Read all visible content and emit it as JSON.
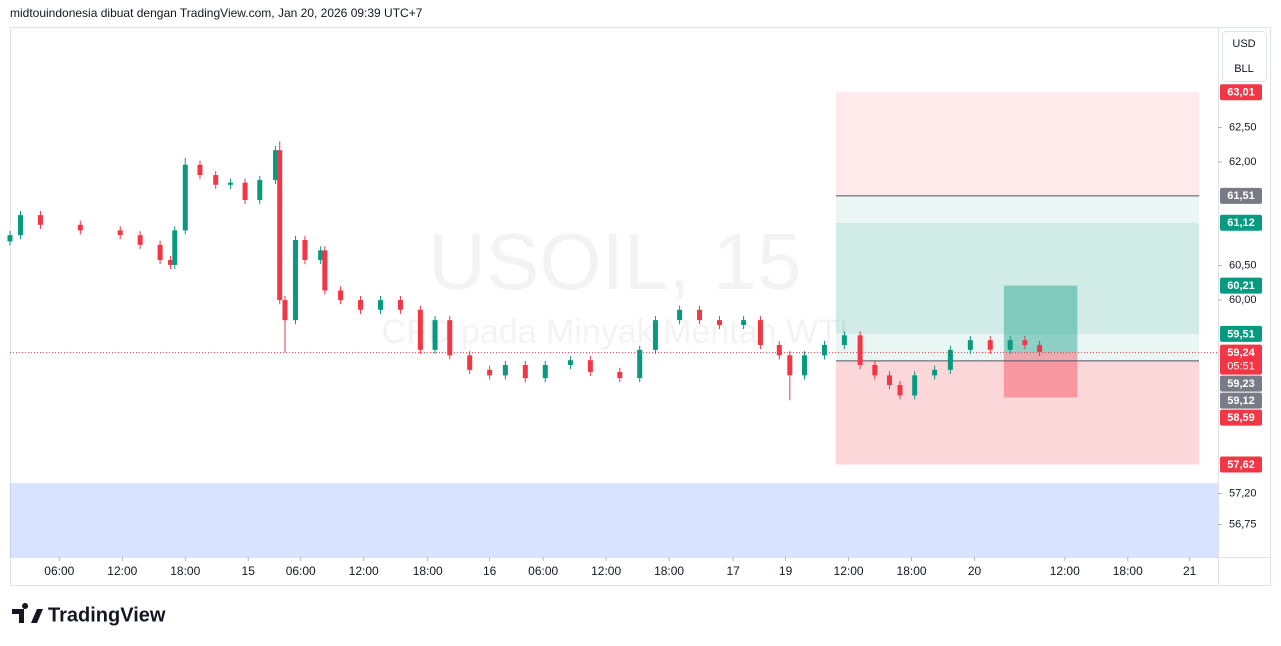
{
  "header": "midtouindonesia dibuat dengan TradingView.com, Jan 20, 2026 09:39 UTC+7",
  "brand": "TradingView",
  "currency": "USD",
  "unit": "BLL",
  "chart_data": {
    "type": "candlestick",
    "title": "USOIL, 15",
    "subtitle": "CFD pada Minyak Mentah WTI",
    "up_color": "#089981",
    "down_color": "#f23645",
    "xlim": [
      1.3,
      116.4
    ],
    "ylim": [
      56.28,
      63.94
    ],
    "xticks": [
      {
        "value": 6,
        "label": "06:00"
      },
      {
        "value": 12,
        "label": "12:00"
      },
      {
        "value": 18,
        "label": "18:00"
      },
      {
        "value": 24,
        "label": "15"
      },
      {
        "value": 29,
        "label": "06:00"
      },
      {
        "value": 35,
        "label": "12:00"
      },
      {
        "value": 41.1,
        "label": "18:00"
      },
      {
        "value": 47,
        "label": "16"
      },
      {
        "value": 52.1,
        "label": "06:00"
      },
      {
        "value": 58.1,
        "label": "12:00"
      },
      {
        "value": 64.1,
        "label": "18:00"
      },
      {
        "value": 70.2,
        "label": "17"
      },
      {
        "value": 75.2,
        "label": "19"
      },
      {
        "value": 81.2,
        "label": "12:00"
      },
      {
        "value": 87.2,
        "label": "18:00"
      },
      {
        "value": 93.2,
        "label": "20"
      },
      {
        "value": 101.8,
        "label": "12:00"
      },
      {
        "value": 107.8,
        "label": "18:00"
      },
      {
        "value": 113.7,
        "label": "21"
      }
    ],
    "yticks": [
      {
        "value": 62.5,
        "label": "62,50"
      },
      {
        "value": 62,
        "label": "62,00"
      },
      {
        "value": 60.5,
        "label": "60,50"
      },
      {
        "value": 60,
        "label": "60,00"
      },
      {
        "value": 57.2,
        "label": "57,20"
      },
      {
        "value": 56.75,
        "label": "56,75"
      }
    ],
    "x": [
      1.3,
      2.3,
      4.2,
      8.0,
      11.8,
      13.7,
      15.6,
      16.6,
      17.0,
      18.0,
      19.4,
      20.9,
      22.3,
      23.7,
      25.1,
      26.6,
      27.0,
      27.5,
      28.5,
      29.4,
      30.9,
      31.3,
      32.8,
      34.7,
      36.6,
      38.5,
      40.4,
      41.8,
      43.2,
      45.1,
      47.0,
      48.5,
      50.4,
      52.3,
      54.7,
      56.6,
      59.4,
      61.3,
      62.8,
      65.1,
      67.0,
      68.9,
      71.2,
      72.8,
      74.6,
      75.6,
      77.0,
      78.9,
      80.8,
      82.3,
      83.7,
      85.1,
      86.1,
      87.5,
      89.4,
      90.9,
      92.8,
      94.7,
      96.6,
      98.0,
      99.4
    ],
    "open": [
      60.85,
      60.94,
      61.23,
      61.09,
      61.01,
      60.94,
      60.8,
      60.58,
      60.51,
      61.01,
      61.96,
      61.81,
      61.67,
      61.7,
      61.45,
      61.74,
      62.17,
      60.0,
      59.71,
      60.87,
      60.58,
      60.72,
      60.14,
      60.0,
      59.86,
      60.0,
      59.86,
      59.28,
      59.71,
      59.2,
      58.99,
      58.91,
      59.06,
      58.87,
      59.06,
      59.13,
      58.96,
      58.87,
      59.28,
      59.71,
      59.86,
      59.71,
      59.64,
      59.71,
      59.35,
      59.2,
      58.91,
      59.2,
      59.35,
      59.49,
      59.06,
      58.91,
      58.77,
      58.62,
      58.91,
      58.99,
      59.28,
      59.42,
      59.28,
      59.42,
      59.35
    ],
    "high": [
      61.0,
      61.29,
      61.29,
      61.15,
      61.07,
      61.0,
      60.86,
      60.64,
      61.07,
      62.06,
      62.02,
      61.87,
      61.76,
      61.76,
      61.8,
      62.23,
      62.3,
      60.06,
      60.93,
      60.93,
      60.78,
      60.78,
      60.2,
      60.06,
      60.06,
      60.06,
      59.92,
      59.77,
      59.77,
      59.26,
      59.05,
      59.12,
      59.12,
      59.12,
      59.19,
      59.19,
      59.02,
      59.34,
      59.77,
      59.92,
      59.92,
      59.77,
      59.77,
      59.77,
      59.41,
      59.26,
      59.26,
      59.41,
      59.55,
      59.55,
      59.12,
      58.97,
      58.83,
      58.97,
      59.05,
      59.34,
      59.48,
      59.48,
      59.48,
      59.48,
      59.41
    ],
    "low": [
      60.79,
      60.88,
      61.03,
      60.95,
      60.88,
      60.74,
      60.52,
      60.45,
      60.45,
      60.95,
      61.75,
      61.61,
      61.61,
      61.39,
      61.39,
      61.68,
      59.94,
      59.24,
      59.65,
      60.52,
      60.52,
      60.08,
      59.94,
      59.8,
      59.8,
      59.8,
      59.22,
      59.22,
      59.14,
      58.93,
      58.85,
      58.85,
      58.81,
      58.81,
      59.0,
      58.9,
      58.81,
      58.81,
      59.22,
      59.65,
      59.65,
      59.58,
      59.58,
      59.29,
      59.14,
      58.55,
      58.85,
      59.14,
      59.29,
      59.0,
      58.85,
      58.71,
      58.56,
      58.56,
      58.85,
      58.93,
      59.22,
      59.22,
      59.22,
      59.29,
      59.19
    ],
    "close": [
      60.94,
      61.23,
      61.09,
      61.01,
      60.94,
      60.8,
      60.58,
      60.51,
      61.01,
      61.96,
      61.81,
      61.67,
      61.7,
      61.45,
      61.74,
      62.17,
      60.0,
      59.71,
      60.87,
      60.58,
      60.72,
      60.14,
      60.0,
      59.86,
      60.0,
      59.86,
      59.28,
      59.71,
      59.2,
      58.99,
      58.91,
      59.06,
      58.87,
      59.06,
      59.13,
      58.96,
      58.87,
      59.28,
      59.71,
      59.86,
      59.71,
      59.64,
      59.71,
      59.35,
      59.2,
      58.91,
      59.2,
      59.35,
      59.49,
      59.06,
      58.91,
      58.77,
      58.62,
      58.91,
      58.99,
      59.28,
      59.42,
      59.28,
      59.42,
      59.35,
      59.25
    ],
    "zones": [
      {
        "from": 57.35,
        "to": 56.28,
        "x": [
          1.3,
          116.4
        ],
        "color": "rgba(41,98,255,0.18)"
      },
      {
        "from": 63.01,
        "to": 61.51,
        "x": [
          80.0,
          114.6
        ],
        "color": "rgba(242,54,69,0.11)"
      },
      {
        "from": 61.51,
        "to": 61.12,
        "x": [
          80.0,
          114.6
        ],
        "color": "rgba(8,153,129,0.09)"
      },
      {
        "from": 61.12,
        "to": 59.51,
        "x": [
          80.0,
          114.6
        ],
        "color": "rgba(8,153,129,0.19)"
      },
      {
        "from": 59.51,
        "to": 59.12,
        "x": [
          80.0,
          114.6
        ],
        "color": "rgba(8,153,129,0.09)"
      },
      {
        "from": 59.12,
        "to": 57.62,
        "x": [
          80.0,
          114.6
        ],
        "color": "rgba(242,54,69,0.2)"
      },
      {
        "from": 60.21,
        "to": 59.24,
        "x": [
          96.0,
          103.0
        ],
        "color": "rgba(8,153,129,0.4)"
      },
      {
        "from": 59.24,
        "to": 58.59,
        "x": [
          96.0,
          103.0
        ],
        "color": "rgba(242,54,69,0.4)"
      }
    ],
    "price_lines": [
      {
        "value": 61.51,
        "x": [
          80.0,
          114.6
        ],
        "color": "#50535e",
        "dashed": false
      },
      {
        "value": 59.12,
        "x": [
          80.0,
          114.6
        ],
        "color": "#50535e",
        "dashed": false
      },
      {
        "value": 59.24,
        "x": [
          1.3,
          116.4
        ],
        "color": "#f23645",
        "dashed": true
      }
    ],
    "price_labels": [
      {
        "value": 63.01,
        "label": "63,01",
        "color": "#f23645"
      },
      {
        "value": 61.51,
        "label": "61,51",
        "color": "#787b86"
      },
      {
        "value": 61.12,
        "label": "61,12",
        "color": "#089981"
      },
      {
        "value": 60.21,
        "label": "60,21",
        "color": "#089981"
      },
      {
        "value": 59.51,
        "label": "59,51",
        "color": "#089981"
      },
      {
        "value": 59.24,
        "label": "59,24",
        "color": "#f23645",
        "countdown": "05:51"
      },
      {
        "value": 59.23,
        "label": "59,23",
        "color": "#787b86"
      },
      {
        "value": 59.12,
        "label": "59,12",
        "color": "#787b86"
      },
      {
        "value": 58.59,
        "label": "58,59",
        "color": "#f23645"
      },
      {
        "value": 57.62,
        "label": "57,62",
        "color": "#f23645"
      }
    ]
  }
}
